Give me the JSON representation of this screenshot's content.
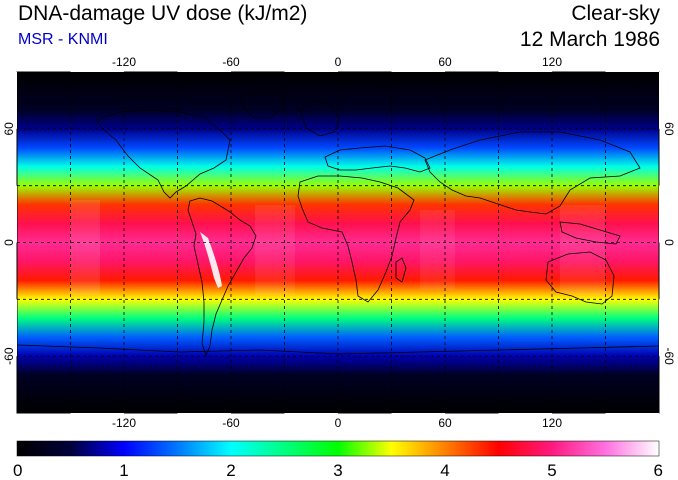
{
  "header": {
    "title": "DNA-damage UV dose (kJ/m2)",
    "subtitle": "MSR - KNMI",
    "condition": "Clear-sky",
    "date": "12 March 1986"
  },
  "map": {
    "projection": "equirectangular",
    "lon_range": [
      -180,
      180
    ],
    "lat_range": [
      -90,
      90
    ],
    "lon_ticks": [
      -120,
      -60,
      0,
      60,
      120
    ],
    "lat_ticks": [
      60,
      0,
      -60
    ],
    "lon_tick_labels": [
      "-120",
      "-60",
      "0",
      "60",
      "120"
    ],
    "lat_tick_labels": [
      "60",
      "0",
      "-60"
    ],
    "grid_lon_step": 30,
    "grid_lat_step": 30,
    "grid_style": "dashed black",
    "field_profile": {
      "lat": [
        -90,
        -70,
        -60,
        -50,
        -40,
        -30,
        -20,
        -10,
        0,
        10,
        20,
        30,
        40,
        50,
        60,
        70,
        90
      ],
      "dose": [
        0.0,
        0.3,
        0.8,
        1.4,
        2.5,
        3.5,
        4.4,
        4.9,
        5.1,
        4.8,
        4.3,
        3.3,
        2.1,
        1.3,
        0.7,
        0.3,
        0.0
      ]
    }
  },
  "colorbar": {
    "min": 0,
    "max": 6,
    "tick_labels": [
      "0",
      "1",
      "2",
      "3",
      "4",
      "5",
      "6"
    ],
    "stops": [
      {
        "value": 0.0,
        "color": "#000000"
      },
      {
        "value": 0.5,
        "color": "#00003a"
      },
      {
        "value": 1.0,
        "color": "#0000ff"
      },
      {
        "value": 1.5,
        "color": "#0078ff"
      },
      {
        "value": 2.0,
        "color": "#00ffff"
      },
      {
        "value": 2.5,
        "color": "#00ff80"
      },
      {
        "value": 3.0,
        "color": "#00ff00"
      },
      {
        "value": 3.5,
        "color": "#ffff00"
      },
      {
        "value": 4.0,
        "color": "#ff8000"
      },
      {
        "value": 4.5,
        "color": "#ff0000"
      },
      {
        "value": 5.0,
        "color": "#ff1a80"
      },
      {
        "value": 5.5,
        "color": "#ff70e0"
      },
      {
        "value": 6.0,
        "color": "#ffffff"
      }
    ]
  }
}
